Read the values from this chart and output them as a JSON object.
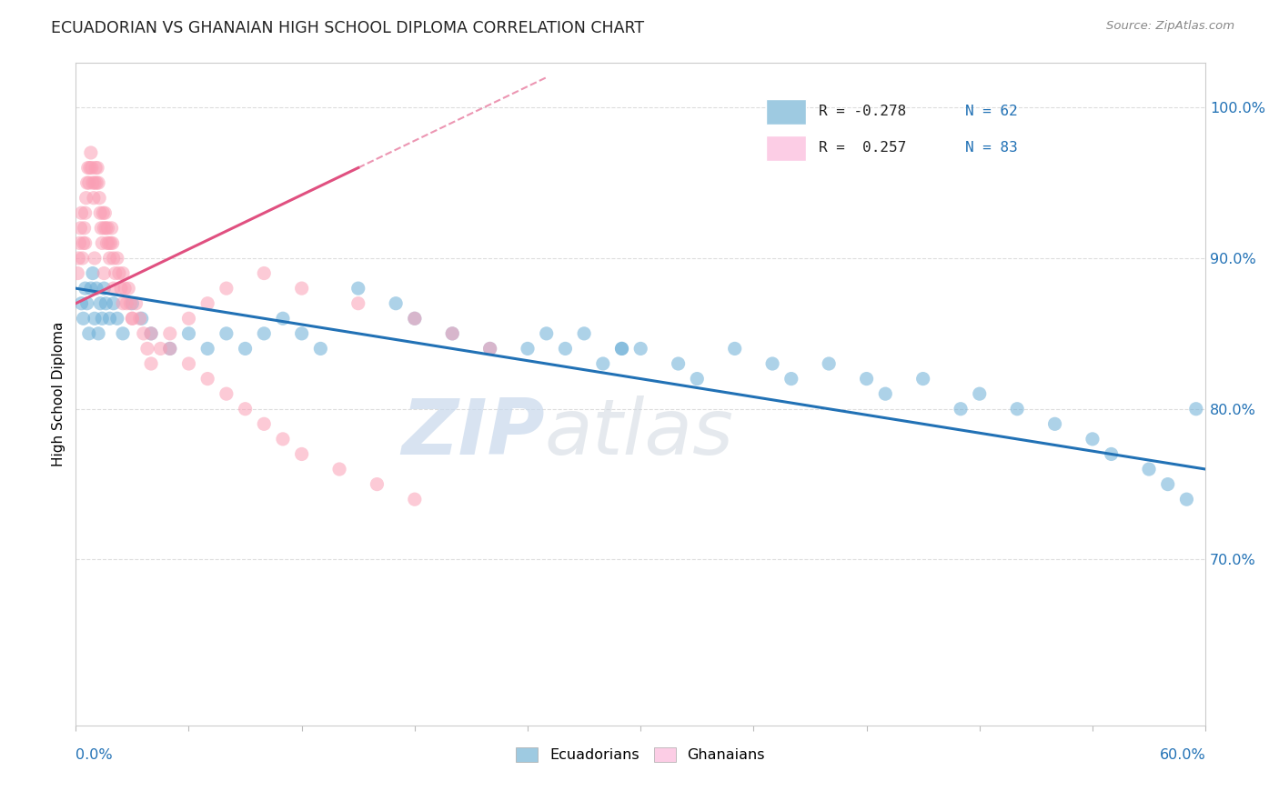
{
  "title": "ECUADORIAN VS GHANAIAN HIGH SCHOOL DIPLOMA CORRELATION CHART",
  "source_text": "Source: ZipAtlas.com",
  "ylabel": "High School Diploma",
  "xlim": [
    0.0,
    60.0
  ],
  "ylim": [
    59.0,
    103.0
  ],
  "ytick_values": [
    70.0,
    80.0,
    90.0,
    100.0
  ],
  "ytick_labels": [
    "70.0%",
    "80.0%",
    "90.0%",
    "100.0%"
  ],
  "watermark_zip": "ZIP",
  "watermark_atlas": "atlas",
  "color_blue": "#6BAED6",
  "color_blue_fill": "#9ECAE1",
  "color_pink": "#FA9FB5",
  "color_pink_fill": "#FCCDE5",
  "color_blue_line": "#2171B5",
  "color_pink_line": "#E05080",
  "background_color": "#FFFFFF",
  "grid_color": "#DDDDDD",
  "blue_x": [
    0.3,
    0.4,
    0.5,
    0.6,
    0.7,
    0.8,
    0.9,
    1.0,
    1.1,
    1.2,
    1.3,
    1.4,
    1.5,
    1.6,
    1.8,
    2.0,
    2.2,
    2.5,
    3.0,
    3.5,
    4.0,
    5.0,
    6.0,
    7.0,
    8.0,
    9.0,
    10.0,
    11.0,
    12.0,
    13.0,
    15.0,
    17.0,
    18.0,
    20.0,
    22.0,
    24.0,
    25.0,
    26.0,
    27.0,
    28.0,
    29.0,
    30.0,
    32.0,
    33.0,
    35.0,
    37.0,
    38.0,
    40.0,
    42.0,
    43.0,
    45.0,
    47.0,
    48.0,
    50.0,
    52.0,
    54.0,
    55.0,
    57.0,
    58.0,
    59.0,
    59.5,
    29.0
  ],
  "blue_y": [
    87,
    86,
    88,
    87,
    85,
    88,
    89,
    86,
    88,
    85,
    87,
    86,
    88,
    87,
    86,
    87,
    86,
    85,
    87,
    86,
    85,
    84,
    85,
    84,
    85,
    84,
    85,
    86,
    85,
    84,
    88,
    87,
    86,
    85,
    84,
    84,
    85,
    84,
    85,
    83,
    84,
    84,
    83,
    82,
    84,
    83,
    82,
    83,
    82,
    81,
    82,
    80,
    81,
    80,
    79,
    78,
    77,
    76,
    75,
    74,
    80,
    84
  ],
  "pink_x": [
    0.1,
    0.15,
    0.2,
    0.25,
    0.3,
    0.35,
    0.4,
    0.45,
    0.5,
    0.55,
    0.6,
    0.65,
    0.7,
    0.75,
    0.8,
    0.85,
    0.9,
    0.95,
    1.0,
    1.05,
    1.1,
    1.15,
    1.2,
    1.25,
    1.3,
    1.35,
    1.4,
    1.45,
    1.5,
    1.55,
    1.6,
    1.65,
    1.7,
    1.75,
    1.8,
    1.85,
    1.9,
    1.95,
    2.0,
    2.1,
    2.2,
    2.3,
    2.4,
    2.5,
    2.6,
    2.7,
    2.8,
    2.9,
    3.0,
    3.2,
    3.4,
    3.6,
    3.8,
    4.0,
    4.5,
    5.0,
    6.0,
    7.0,
    8.0,
    10.0,
    12.0,
    15.0,
    18.0,
    20.0,
    22.0,
    0.5,
    1.0,
    1.5,
    2.0,
    2.5,
    3.0,
    4.0,
    5.0,
    6.0,
    7.0,
    8.0,
    9.0,
    10.0,
    11.0,
    12.0,
    14.0,
    16.0,
    18.0
  ],
  "pink_y": [
    89,
    90,
    91,
    92,
    93,
    90,
    91,
    92,
    93,
    94,
    95,
    96,
    95,
    96,
    97,
    96,
    95,
    94,
    95,
    96,
    95,
    96,
    95,
    94,
    93,
    92,
    91,
    93,
    92,
    93,
    92,
    91,
    92,
    91,
    90,
    91,
    92,
    91,
    90,
    89,
    90,
    89,
    88,
    89,
    88,
    87,
    88,
    87,
    86,
    87,
    86,
    85,
    84,
    83,
    84,
    85,
    86,
    87,
    88,
    89,
    88,
    87,
    86,
    85,
    84,
    91,
    90,
    89,
    88,
    87,
    86,
    85,
    84,
    83,
    82,
    81,
    80,
    79,
    78,
    77,
    76,
    75,
    74
  ]
}
